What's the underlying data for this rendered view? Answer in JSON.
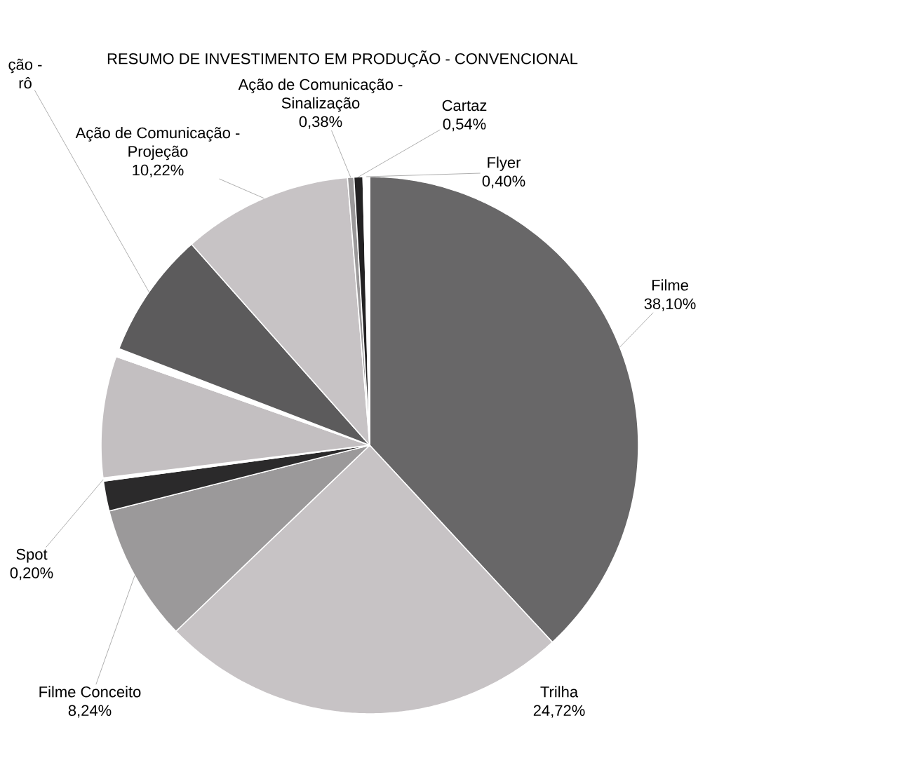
{
  "chart_data": {
    "type": "pie",
    "title": "RESUMO DE INVESTIMENTO EM PRODUÇÃO - CONVENCIONAL",
    "categories": [
      "Filme",
      "Trilha",
      "Filme Conceito",
      null,
      "Spot",
      null,
      null,
      "ção - rô",
      "Ação de Comunicação - Projeção",
      "Ação de Comunicação - Sinalização",
      "Cartaz",
      "Flyer"
    ],
    "values": [
      38.1,
      24.72,
      8.24,
      1.8,
      0.2,
      7.3,
      0.5,
      7.6,
      10.22,
      0.38,
      0.54,
      0.4
    ],
    "value_labels": [
      "38,10%",
      "24,72%",
      "8,24%",
      null,
      "0,20%",
      null,
      null,
      null,
      "10,22%",
      "0,38%",
      "0,54%",
      "0,40%"
    ],
    "colors": [
      "#686768",
      "#c7c3c5",
      "#9b999a",
      "#2b2a2b",
      "#ffffff",
      "#c3bfc1",
      "#ffffff",
      "#5c5b5c",
      "#c7c3c5",
      "#9b999a",
      "#232223",
      "#ffffff"
    ]
  }
}
